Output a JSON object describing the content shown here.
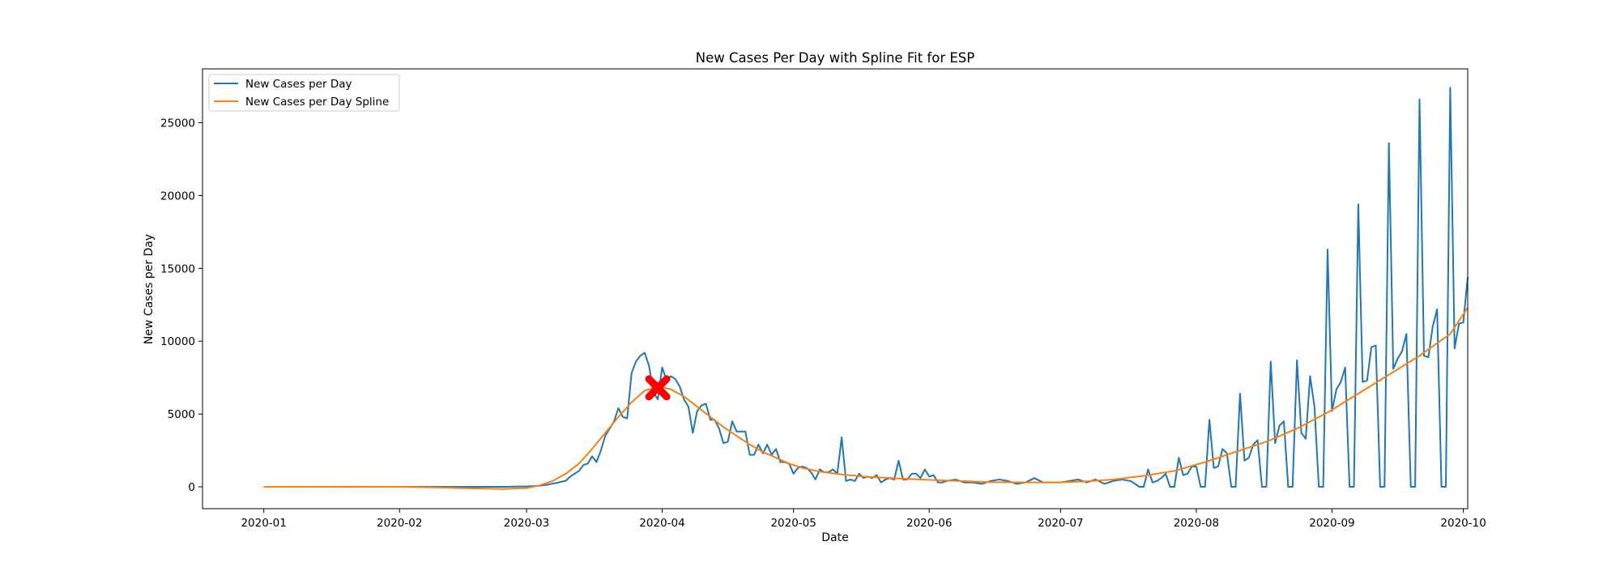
{
  "chart_data": {
    "type": "line",
    "title": "New Cases Per Day with Spline Fit for ESP",
    "xlabel": "Date",
    "ylabel": "New Cases per Day",
    "x_range": [
      "2019-12-18",
      "2020-10-02"
    ],
    "ylim": [
      -1500,
      28700
    ],
    "x_ticks": [
      "2020-01",
      "2020-02",
      "2020-03",
      "2020-04",
      "2020-05",
      "2020-06",
      "2020-07",
      "2020-08",
      "2020-09",
      "2020-10"
    ],
    "x_tick_dates": [
      "2020-01-01",
      "2020-02-01",
      "2020-03-01",
      "2020-04-01",
      "2020-05-01",
      "2020-06-01",
      "2020-07-01",
      "2020-08-01",
      "2020-09-01",
      "2020-10-01"
    ],
    "y_ticks": [
      0,
      5000,
      10000,
      15000,
      20000,
      25000
    ],
    "grid": false,
    "legend_position": "top-left",
    "series": [
      {
        "name": "New Cases per Day",
        "color": "#1f77b4",
        "points": [
          [
            "2020-01-01",
            0
          ],
          [
            "2020-02-01",
            0
          ],
          [
            "2020-02-25",
            0
          ],
          [
            "2020-03-01",
            30
          ],
          [
            "2020-03-04",
            80
          ],
          [
            "2020-03-06",
            160
          ],
          [
            "2020-03-08",
            280
          ],
          [
            "2020-03-10",
            420
          ],
          [
            "2020-03-11",
            700
          ],
          [
            "2020-03-12",
            900
          ],
          [
            "2020-03-13",
            1100
          ],
          [
            "2020-03-14",
            1500
          ],
          [
            "2020-03-15",
            1600
          ],
          [
            "2020-03-16",
            2100
          ],
          [
            "2020-03-17",
            1700
          ],
          [
            "2020-03-18",
            2500
          ],
          [
            "2020-03-19",
            3500
          ],
          [
            "2020-03-20",
            4000
          ],
          [
            "2020-03-21",
            4500
          ],
          [
            "2020-03-22",
            5400
          ],
          [
            "2020-03-23",
            4800
          ],
          [
            "2020-03-24",
            4700
          ],
          [
            "2020-03-25",
            7800
          ],
          [
            "2020-03-26",
            8600
          ],
          [
            "2020-03-27",
            9000
          ],
          [
            "2020-03-28",
            9200
          ],
          [
            "2020-03-29",
            8300
          ],
          [
            "2020-03-30",
            6500
          ],
          [
            "2020-03-31",
            6000
          ],
          [
            "2020-04-01",
            8200
          ],
          [
            "2020-04-02",
            7300
          ],
          [
            "2020-04-03",
            7600
          ],
          [
            "2020-04-04",
            7400
          ],
          [
            "2020-04-05",
            6900
          ],
          [
            "2020-04-06",
            6000
          ],
          [
            "2020-04-07",
            5500
          ],
          [
            "2020-04-08",
            3700
          ],
          [
            "2020-04-09",
            5200
          ],
          [
            "2020-04-10",
            5600
          ],
          [
            "2020-04-11",
            5700
          ],
          [
            "2020-04-12",
            4600
          ],
          [
            "2020-04-13",
            4600
          ],
          [
            "2020-04-14",
            4000
          ],
          [
            "2020-04-15",
            3000
          ],
          [
            "2020-04-16",
            3100
          ],
          [
            "2020-04-17",
            4500
          ],
          [
            "2020-04-18",
            3800
          ],
          [
            "2020-04-19",
            3800
          ],
          [
            "2020-04-20",
            3800
          ],
          [
            "2020-04-21",
            2200
          ],
          [
            "2020-04-22",
            2200
          ],
          [
            "2020-04-23",
            2900
          ],
          [
            "2020-04-24",
            2300
          ],
          [
            "2020-04-25",
            2900
          ],
          [
            "2020-04-26",
            2200
          ],
          [
            "2020-04-27",
            2600
          ],
          [
            "2020-04-28",
            1700
          ],
          [
            "2020-04-29",
            1700
          ],
          [
            "2020-04-30",
            1600
          ],
          [
            "2020-05-01",
            900
          ],
          [
            "2020-05-02",
            1300
          ],
          [
            "2020-05-03",
            1400
          ],
          [
            "2020-05-04",
            1300
          ],
          [
            "2020-05-05",
            1000
          ],
          [
            "2020-05-06",
            500
          ],
          [
            "2020-05-07",
            1200
          ],
          [
            "2020-05-08",
            1000
          ],
          [
            "2020-05-09",
            1000
          ],
          [
            "2020-05-10",
            1200
          ],
          [
            "2020-05-11",
            900
          ],
          [
            "2020-05-12",
            3400
          ],
          [
            "2020-05-13",
            400
          ],
          [
            "2020-05-14",
            500
          ],
          [
            "2020-05-15",
            400
          ],
          [
            "2020-05-16",
            900
          ],
          [
            "2020-05-17",
            600
          ],
          [
            "2020-05-18",
            700
          ],
          [
            "2020-05-19",
            600
          ],
          [
            "2020-05-20",
            800
          ],
          [
            "2020-05-21",
            300
          ],
          [
            "2020-05-22",
            500
          ],
          [
            "2020-05-23",
            600
          ],
          [
            "2020-05-24",
            500
          ],
          [
            "2020-05-25",
            1800
          ],
          [
            "2020-05-26",
            500
          ],
          [
            "2020-05-27",
            500
          ],
          [
            "2020-05-28",
            900
          ],
          [
            "2020-05-29",
            900
          ],
          [
            "2020-05-30",
            600
          ],
          [
            "2020-05-31",
            1200
          ],
          [
            "2020-06-01",
            700
          ],
          [
            "2020-06-02",
            800
          ],
          [
            "2020-06-03",
            300
          ],
          [
            "2020-06-04",
            300
          ],
          [
            "2020-06-05",
            400
          ],
          [
            "2020-06-07",
            500
          ],
          [
            "2020-06-09",
            300
          ],
          [
            "2020-06-11",
            300
          ],
          [
            "2020-06-13",
            200
          ],
          [
            "2020-06-15",
            400
          ],
          [
            "2020-06-17",
            500
          ],
          [
            "2020-06-19",
            400
          ],
          [
            "2020-06-21",
            200
          ],
          [
            "2020-06-23",
            300
          ],
          [
            "2020-06-25",
            600
          ],
          [
            "2020-06-27",
            300
          ],
          [
            "2020-06-29",
            300
          ],
          [
            "2020-07-01",
            300
          ],
          [
            "2020-07-03",
            400
          ],
          [
            "2020-07-05",
            500
          ],
          [
            "2020-07-07",
            300
          ],
          [
            "2020-07-09",
            500
          ],
          [
            "2020-07-11",
            200
          ],
          [
            "2020-07-13",
            400
          ],
          [
            "2020-07-15",
            500
          ],
          [
            "2020-07-17",
            400
          ],
          [
            "2020-07-19",
            0
          ],
          [
            "2020-07-20",
            0
          ],
          [
            "2020-07-21",
            1200
          ],
          [
            "2020-07-22",
            300
          ],
          [
            "2020-07-23",
            400
          ],
          [
            "2020-07-24",
            600
          ],
          [
            "2020-07-25",
            900
          ],
          [
            "2020-07-26",
            0
          ],
          [
            "2020-07-27",
            0
          ],
          [
            "2020-07-28",
            2000
          ],
          [
            "2020-07-29",
            800
          ],
          [
            "2020-07-30",
            900
          ],
          [
            "2020-07-31",
            1400
          ],
          [
            "2020-08-01",
            1400
          ],
          [
            "2020-08-02",
            0
          ],
          [
            "2020-08-03",
            0
          ],
          [
            "2020-08-04",
            4600
          ],
          [
            "2020-08-05",
            1300
          ],
          [
            "2020-08-06",
            1400
          ],
          [
            "2020-08-07",
            2600
          ],
          [
            "2020-08-08",
            2300
          ],
          [
            "2020-08-09",
            0
          ],
          [
            "2020-08-10",
            0
          ],
          [
            "2020-08-11",
            6400
          ],
          [
            "2020-08-12",
            1800
          ],
          [
            "2020-08-13",
            2000
          ],
          [
            "2020-08-14",
            2900
          ],
          [
            "2020-08-15",
            3200
          ],
          [
            "2020-08-16",
            0
          ],
          [
            "2020-08-17",
            0
          ],
          [
            "2020-08-18",
            8600
          ],
          [
            "2020-08-19",
            3000
          ],
          [
            "2020-08-20",
            4200
          ],
          [
            "2020-08-21",
            4500
          ],
          [
            "2020-08-22",
            0
          ],
          [
            "2020-08-23",
            0
          ],
          [
            "2020-08-24",
            8700
          ],
          [
            "2020-08-25",
            3700
          ],
          [
            "2020-08-26",
            3300
          ],
          [
            "2020-08-27",
            7600
          ],
          [
            "2020-08-28",
            5500
          ],
          [
            "2020-08-29",
            0
          ],
          [
            "2020-08-30",
            0
          ],
          [
            "2020-08-31",
            16300
          ],
          [
            "2020-09-01",
            5200
          ],
          [
            "2020-09-02",
            6700
          ],
          [
            "2020-09-03",
            7200
          ],
          [
            "2020-09-04",
            8200
          ],
          [
            "2020-09-05",
            0
          ],
          [
            "2020-09-06",
            0
          ],
          [
            "2020-09-07",
            19400
          ],
          [
            "2020-09-08",
            7200
          ],
          [
            "2020-09-09",
            7300
          ],
          [
            "2020-09-10",
            9600
          ],
          [
            "2020-09-11",
            9700
          ],
          [
            "2020-09-12",
            0
          ],
          [
            "2020-09-13",
            0
          ],
          [
            "2020-09-14",
            23600
          ],
          [
            "2020-09-15",
            8100
          ],
          [
            "2020-09-16",
            8800
          ],
          [
            "2020-09-17",
            9300
          ],
          [
            "2020-09-18",
            10500
          ],
          [
            "2020-09-19",
            0
          ],
          [
            "2020-09-20",
            0
          ],
          [
            "2020-09-21",
            26600
          ],
          [
            "2020-09-22",
            9000
          ],
          [
            "2020-09-23",
            8900
          ],
          [
            "2020-09-24",
            11000
          ],
          [
            "2020-09-25",
            12200
          ],
          [
            "2020-09-26",
            0
          ],
          [
            "2020-09-27",
            0
          ],
          [
            "2020-09-28",
            27400
          ],
          [
            "2020-09-29",
            9500
          ],
          [
            "2020-09-30",
            11200
          ],
          [
            "2020-10-01",
            11300
          ],
          [
            "2020-10-02",
            14400
          ]
        ]
      },
      {
        "name": "New Cases per Day Spline",
        "color": "#ff7f0e",
        "points": [
          [
            "2020-01-01",
            0
          ],
          [
            "2020-01-20",
            10
          ],
          [
            "2020-02-01",
            0
          ],
          [
            "2020-02-10",
            -50
          ],
          [
            "2020-02-20",
            -120
          ],
          [
            "2020-02-25",
            -150
          ],
          [
            "2020-03-01",
            -80
          ],
          [
            "2020-03-04",
            100
          ],
          [
            "2020-03-07",
            400
          ],
          [
            "2020-03-10",
            900
          ],
          [
            "2020-03-13",
            1600
          ],
          [
            "2020-03-16",
            2600
          ],
          [
            "2020-03-19",
            3700
          ],
          [
            "2020-03-22",
            4800
          ],
          [
            "2020-03-25",
            5800
          ],
          [
            "2020-03-28",
            6600
          ],
          [
            "2020-03-31",
            6900
          ],
          [
            "2020-04-03",
            6700
          ],
          [
            "2020-04-06",
            6200
          ],
          [
            "2020-04-09",
            5500
          ],
          [
            "2020-04-12",
            4800
          ],
          [
            "2020-04-15",
            4100
          ],
          [
            "2020-04-18",
            3500
          ],
          [
            "2020-04-21",
            2900
          ],
          [
            "2020-04-24",
            2400
          ],
          [
            "2020-04-27",
            2000
          ],
          [
            "2020-04-30",
            1600
          ],
          [
            "2020-05-03",
            1300
          ],
          [
            "2020-05-07",
            1050
          ],
          [
            "2020-05-12",
            850
          ],
          [
            "2020-05-17",
            700
          ],
          [
            "2020-05-22",
            620
          ],
          [
            "2020-05-28",
            530
          ],
          [
            "2020-06-05",
            430
          ],
          [
            "2020-06-15",
            320
          ],
          [
            "2020-06-25",
            300
          ],
          [
            "2020-07-01",
            310
          ],
          [
            "2020-07-07",
            380
          ],
          [
            "2020-07-13",
            500
          ],
          [
            "2020-07-20",
            750
          ],
          [
            "2020-07-27",
            1100
          ],
          [
            "2020-08-03",
            1700
          ],
          [
            "2020-08-10",
            2400
          ],
          [
            "2020-08-17",
            3100
          ],
          [
            "2020-08-24",
            4000
          ],
          [
            "2020-08-31",
            5100
          ],
          [
            "2020-09-07",
            6400
          ],
          [
            "2020-09-14",
            7700
          ],
          [
            "2020-09-21",
            9000
          ],
          [
            "2020-09-28",
            10500
          ],
          [
            "2020-10-02",
            12300
          ]
        ]
      }
    ],
    "marker": {
      "shape": "X",
      "color": "#ff0000",
      "x": "2020-03-31",
      "y": 6800
    }
  }
}
